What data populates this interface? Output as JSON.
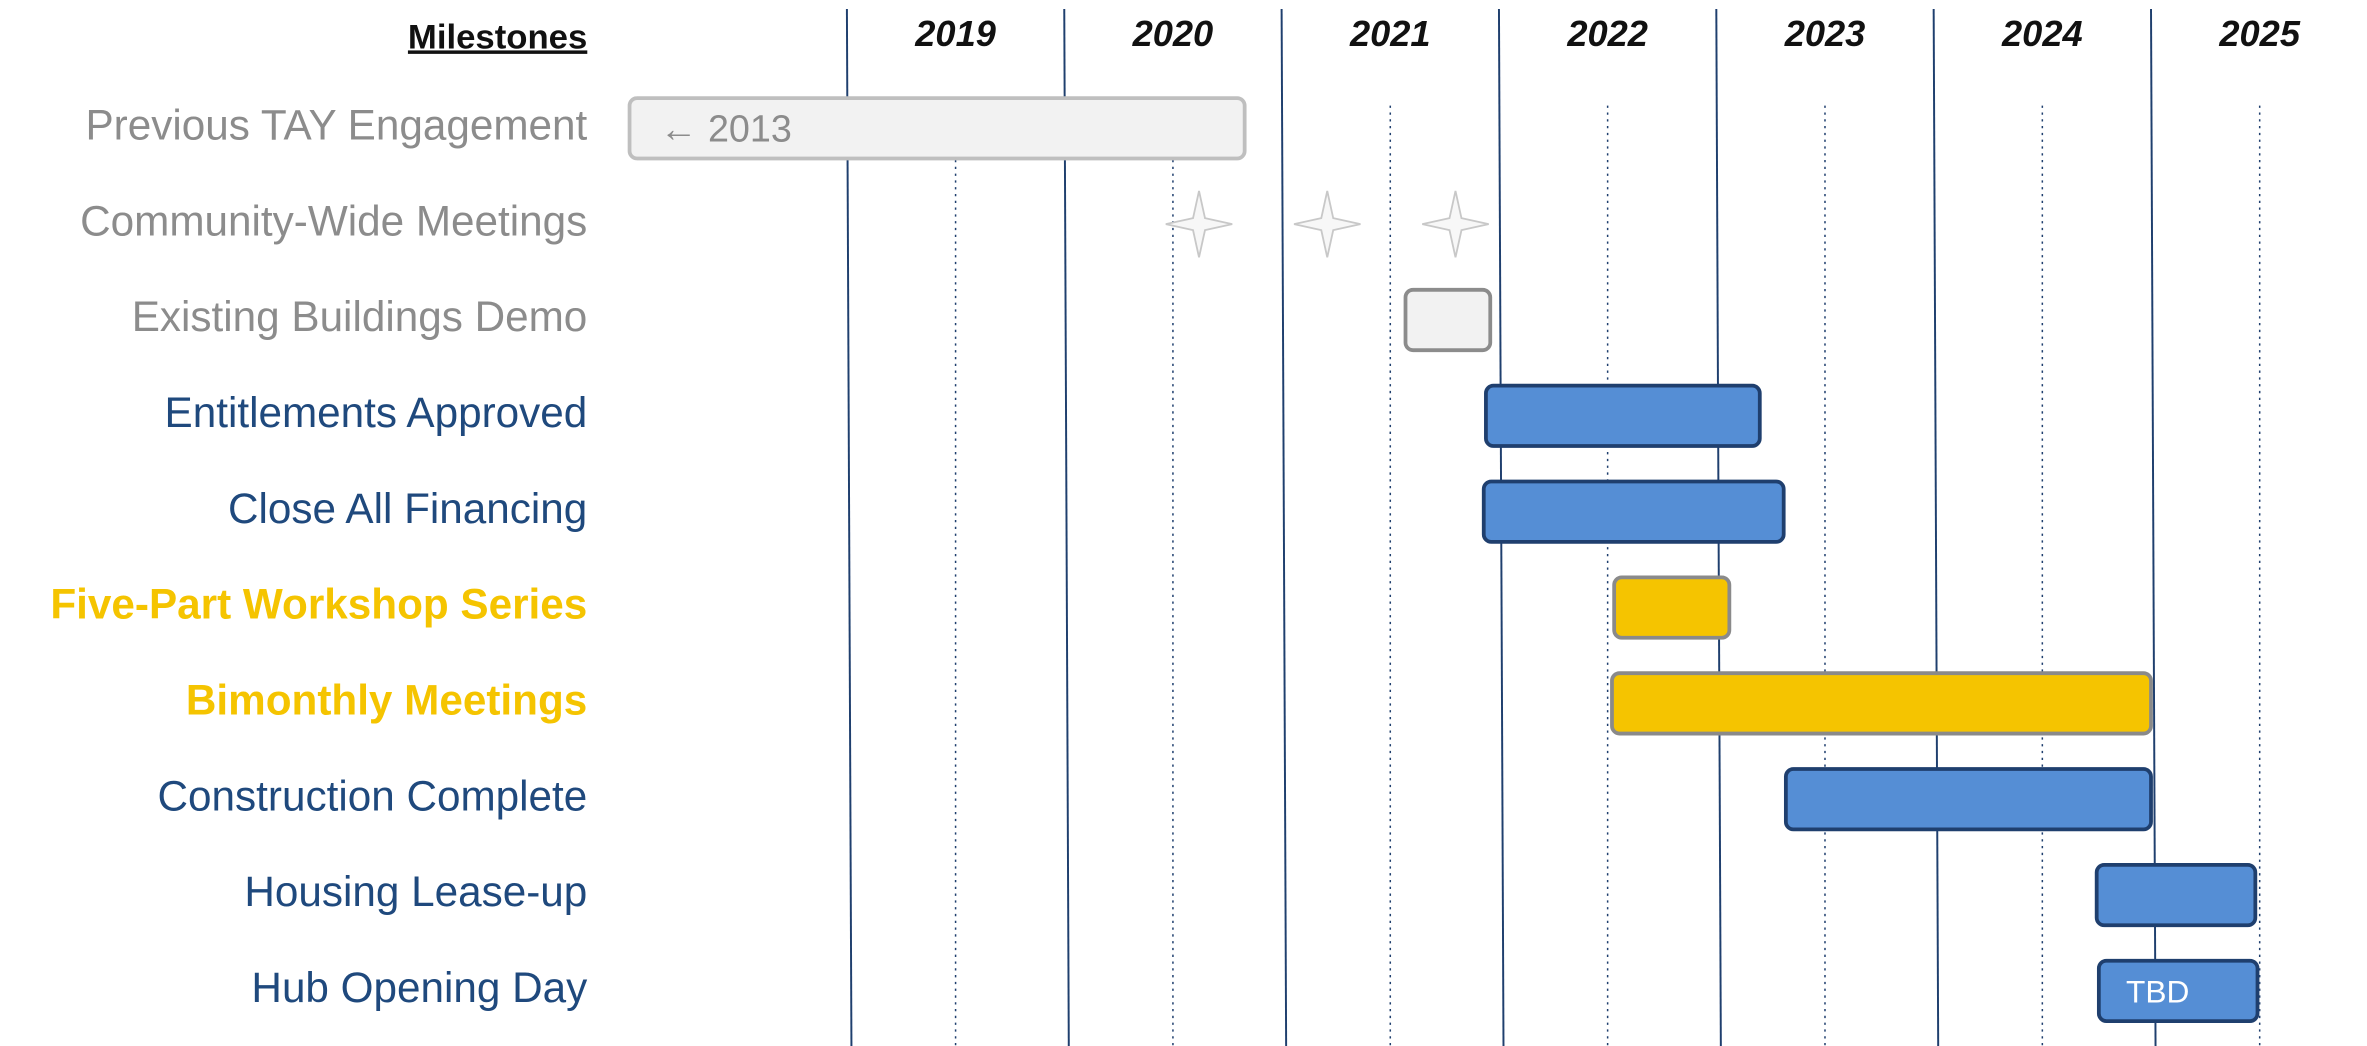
{
  "chart_data": {
    "type": "gantt",
    "title": "Milestones",
    "xlim": [
      2018,
      2026
    ],
    "xticks": [
      {
        "value": 2019.5,
        "label": "2019"
      },
      {
        "value": 2020.5,
        "label": "2020"
      },
      {
        "value": 2021.5,
        "label": "2021"
      },
      {
        "value": 2022.5,
        "label": "2022"
      },
      {
        "value": 2023.5,
        "label": "2023"
      },
      {
        "value": 2024.5,
        "label": "2024"
      },
      {
        "value": 2025.5,
        "label": "2025"
      }
    ],
    "year_boundaries": [
      2019,
      2020,
      2021,
      2022,
      2023,
      2024,
      2025
    ],
    "tasks": [
      {
        "name": "Previous TAY Engagement",
        "start": 2018.0,
        "end": 2020.83,
        "label": "← 2013",
        "label_color": "#8c8c8c",
        "fill": "#f2f2f2",
        "stroke": "#bfbfbf"
      },
      {
        "name": "Community-Wide Meetings",
        "dates": [
          2020.62,
          2021.21,
          2021.8
        ],
        "label_color": "#8c8c8c",
        "fill": "#f7f7f7",
        "stroke": "#c8c8c8"
      },
      {
        "name": "Existing Buildings Demo",
        "start": 2021.57,
        "end": 2021.96,
        "label_color": "#8c8c8c",
        "fill": "#f2f2f2",
        "stroke": "#8c8c8c"
      },
      {
        "name": "Entitlements Approved",
        "start": 2021.94,
        "end": 2023.2,
        "label_color": "#1f497d",
        "fill": "#558ed5",
        "stroke": "#1f3f6e"
      },
      {
        "name": "Close All Financing",
        "start": 2021.93,
        "end": 2023.31,
        "label_color": "#1f497d",
        "fill": "#558ed5",
        "stroke": "#1f3f6e"
      },
      {
        "name": "Five-Part Workshop Series",
        "start": 2022.53,
        "end": 2023.06,
        "label_color": "#f5c400",
        "fill": "#f5c400",
        "stroke": "#8a8a8a"
      },
      {
        "name": "Bimonthly Meetings",
        "start": 2022.52,
        "end": 2025.0,
        "label_color": "#f5c400",
        "fill": "#f5c400",
        "stroke": "#8a8a8a"
      },
      {
        "name": "Construction Complete",
        "start": 2023.32,
        "end": 2025.0,
        "label_color": "#1f497d",
        "fill": "#558ed5",
        "stroke": "#1f3f6e"
      },
      {
        "name": "Housing Lease-up",
        "start": 2024.75,
        "end": 2025.48,
        "label_color": "#1f497d",
        "fill": "#558ed5",
        "stroke": "#1f3f6e"
      },
      {
        "name": "Hub Opening Day",
        "start": 2024.76,
        "end": 2025.49,
        "label": "TBD",
        "label_color": "#1f497d",
        "fill": "#558ed5",
        "stroke": "#1f3f6e"
      }
    ]
  }
}
